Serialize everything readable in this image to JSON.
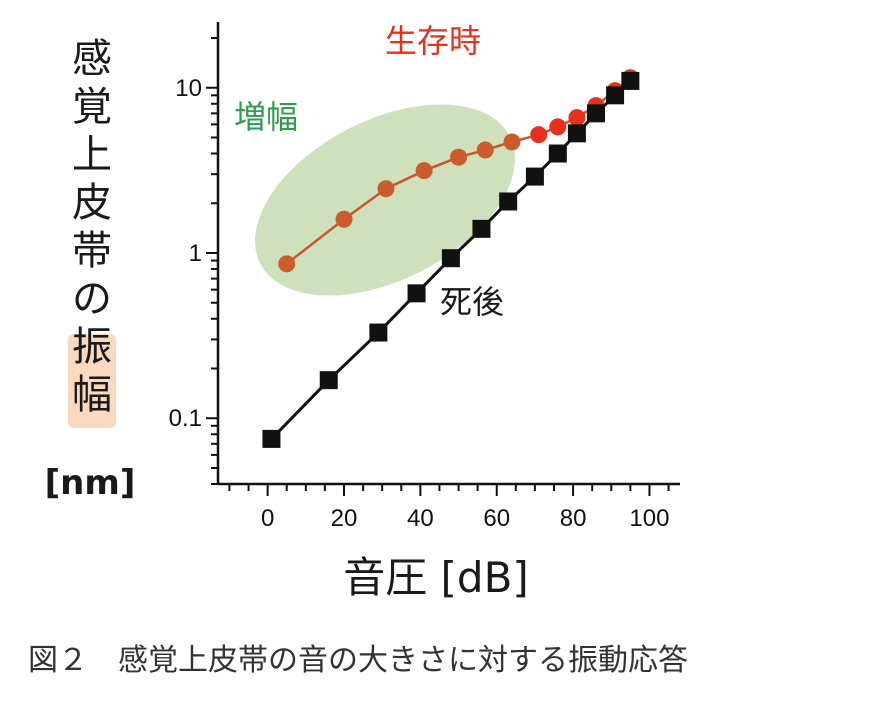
{
  "chart_data": {
    "type": "line",
    "ylabel": "感覚上皮帯の振幅",
    "ylabel_highlight": "振幅",
    "yunit": "[nm]",
    "xlabel": "音圧 [dB]",
    "xlim": [
      -13,
      108
    ],
    "ylim": [
      0.04,
      25
    ],
    "yscale": "log",
    "xticks": [
      0,
      20,
      40,
      60,
      80,
      100
    ],
    "yticks": [
      {
        "value": 0.1,
        "label": "0.1"
      },
      {
        "value": 1,
        "label": "1"
      },
      {
        "value": 10,
        "label": "10"
      }
    ],
    "series": [
      {
        "name": "生存時",
        "color": "#e8301c",
        "marker": "circle",
        "x": [
          5,
          20,
          31,
          41,
          50,
          57,
          64,
          71,
          76,
          81,
          86,
          91,
          95
        ],
        "y": [
          0.86,
          1.6,
          2.45,
          3.15,
          3.8,
          4.2,
          4.7,
          5.2,
          5.8,
          6.6,
          7.8,
          9.6,
          11.5
        ]
      },
      {
        "name": "死後",
        "color": "#111111",
        "marker": "square",
        "x": [
          1,
          16,
          29,
          39,
          48,
          56,
          63,
          70,
          76,
          81,
          86,
          91,
          95
        ],
        "y": [
          0.075,
          0.17,
          0.33,
          0.57,
          0.93,
          1.4,
          2.05,
          2.9,
          4.0,
          5.3,
          7.0,
          9.0,
          11.0
        ]
      }
    ],
    "highlight_region": {
      "label": "増幅",
      "color": "#c5dcb0",
      "label_color": "#2e9e4e"
    }
  },
  "caption": "図２　感覚上皮帯の音の大きさに対する振動応答",
  "colors": {
    "axis": "#111111",
    "highlight_glow": "#f6b98a"
  }
}
